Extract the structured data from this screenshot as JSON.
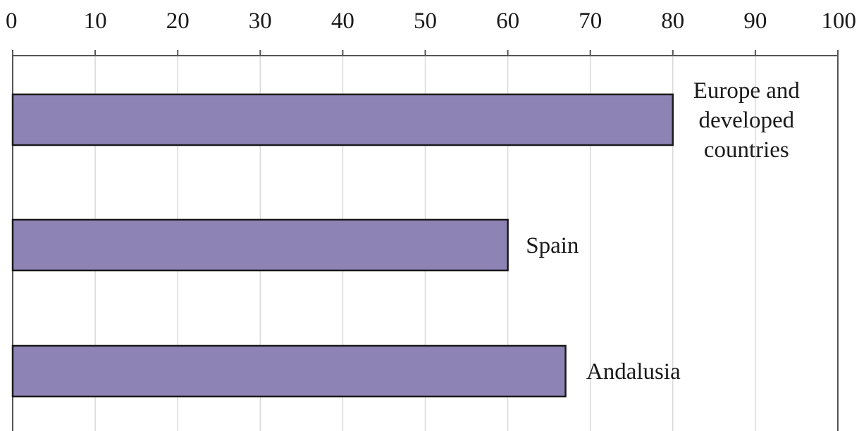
{
  "chart_data": {
    "type": "bar",
    "orientation": "horizontal",
    "categories": [
      "Europe and developed countries",
      "Spain",
      "Andalusia"
    ],
    "category_label_lines": [
      [
        "Europe and",
        "developed",
        "countries"
      ],
      [
        "Spain"
      ],
      [
        "Andalusia"
      ]
    ],
    "values": [
      80,
      60,
      67
    ],
    "title": "",
    "xlabel": "",
    "ylabel": "",
    "xlim": [
      0,
      100
    ],
    "x_ticks": [
      0,
      10,
      20,
      30,
      40,
      50,
      60,
      70,
      80,
      90,
      100
    ],
    "x_tick_labels": [
      "0",
      "10",
      "20",
      "30",
      "40",
      "50",
      "60",
      "70",
      "80",
      "90",
      "100"
    ],
    "x_axis_position": "top",
    "grid": "vertical",
    "legend": "none",
    "bar_color": "#8e83b5",
    "bar_edge_color": "#1a1a1a",
    "grid_color": "#d9d9d9",
    "axis_color": "#555555"
  }
}
